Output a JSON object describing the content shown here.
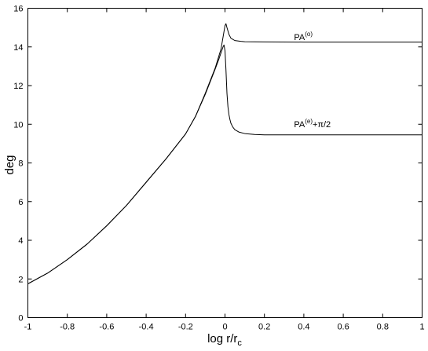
{
  "chart_data": {
    "type": "line",
    "xlabel": {
      "main": "log r/r",
      "sub": "c"
    },
    "ylabel": "deg",
    "xlim": [
      -1,
      1
    ],
    "ylim": [
      0,
      16
    ],
    "xticks": [
      "-1",
      "-0.8",
      "-0.6",
      "-0.4",
      "-0.2",
      "0",
      "0.2",
      "0.4",
      "0.6",
      "0.8",
      "1"
    ],
    "yticks": [
      "0",
      "2",
      "4",
      "6",
      "8",
      "10",
      "12",
      "14",
      "16"
    ],
    "grid": false,
    "series": [
      {
        "label": {
          "base": "PA",
          "sup": "(o)",
          "suffix": ""
        },
        "label_at": [
          0.35,
          14.35
        ],
        "x": [
          -1,
          -0.9,
          -0.8,
          -0.7,
          -0.6,
          -0.5,
          -0.4,
          -0.3,
          -0.2,
          -0.15,
          -0.1,
          -0.05,
          -0.02,
          -0.01,
          0,
          0.005,
          0.01,
          0.02,
          0.03,
          0.05,
          0.08,
          0.1,
          0.2,
          0.4,
          0.6,
          0.8,
          1
        ],
        "y": [
          1.75,
          2.3,
          3.0,
          3.8,
          4.75,
          5.8,
          7.0,
          8.2,
          9.5,
          10.4,
          11.6,
          12.9,
          13.9,
          14.5,
          15.1,
          15.2,
          15.0,
          14.65,
          14.45,
          14.33,
          14.29,
          14.27,
          14.26,
          14.25,
          14.25,
          14.25,
          14.25
        ]
      },
      {
        "label": {
          "base": "PA",
          "sup": "(e)",
          "suffix": "+π/2"
        },
        "label_at": [
          0.35,
          9.85
        ],
        "x": [
          -1,
          -0.9,
          -0.8,
          -0.7,
          -0.6,
          -0.5,
          -0.4,
          -0.3,
          -0.2,
          -0.15,
          -0.1,
          -0.05,
          -0.03,
          -0.02,
          -0.01,
          -0.005,
          0,
          0.005,
          0.01,
          0.015,
          0.02,
          0.025,
          0.03,
          0.04,
          0.05,
          0.07,
          0.1,
          0.15,
          0.2,
          0.3,
          0.5,
          0.7,
          1
        ],
        "y": [
          1.75,
          2.3,
          3.0,
          3.8,
          4.75,
          5.8,
          7.0,
          8.2,
          9.5,
          10.4,
          11.55,
          12.85,
          13.4,
          13.7,
          14.0,
          14.1,
          13.8,
          12.8,
          11.6,
          10.9,
          10.5,
          10.25,
          10.05,
          9.85,
          9.72,
          9.6,
          9.52,
          9.47,
          9.45,
          9.45,
          9.45,
          9.45,
          9.45
        ]
      }
    ]
  }
}
